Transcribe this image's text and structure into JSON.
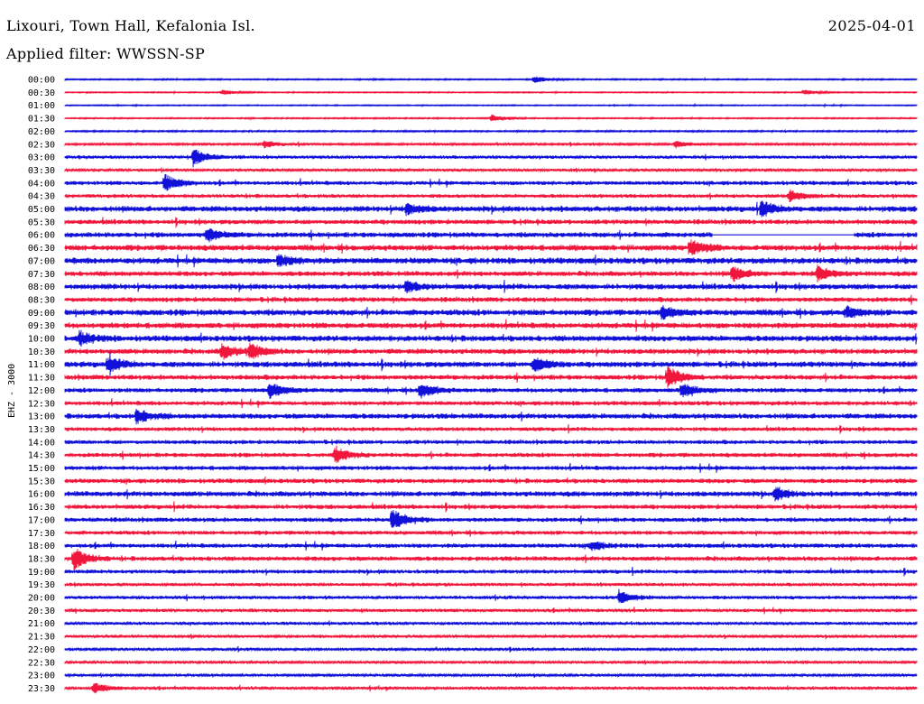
{
  "header": {
    "station": "Lixouri, Town Hall, Kefalonia Isl.",
    "date": "2025-04-01",
    "filter": "Applied filter: WWSSN-SP"
  },
  "chart_data": {
    "type": "line",
    "title": "Lixouri, Town Hall, Kefalonia Isl.",
    "subtitle": "Applied filter: WWSSN-SP",
    "ylabel": "EHZ - 3000",
    "trace_labels": [
      "00:00",
      "00:30",
      "01:00",
      "01:30",
      "02:00",
      "02:30",
      "03:00",
      "03:30",
      "04:00",
      "04:30",
      "05:00",
      "05:30",
      "06:00",
      "06:30",
      "07:00",
      "07:30",
      "08:00",
      "08:30",
      "09:00",
      "09:30",
      "10:00",
      "10:30",
      "11:00",
      "11:30",
      "12:00",
      "12:30",
      "13:00",
      "13:30",
      "14:00",
      "14:30",
      "15:00",
      "15:30",
      "16:00",
      "16:30",
      "17:00",
      "17:30",
      "18:00",
      "18:30",
      "19:00",
      "19:30",
      "20:00",
      "20:30",
      "21:00",
      "21:30",
      "22:00",
      "22:30",
      "23:00",
      "23:30"
    ],
    "trace_colors": [
      "#1010d8",
      "#f0163c"
    ],
    "noise_level": [
      0.6,
      0.5,
      0.5,
      0.6,
      0.7,
      1.0,
      1.4,
      1.3,
      1.9,
      1.7,
      2.6,
      2.2,
      2.4,
      2.7,
      2.8,
      2.3,
      2.5,
      2.2,
      2.8,
      2.6,
      2.7,
      2.4,
      2.6,
      2.3,
      2.1,
      2.0,
      2.4,
      1.8,
      1.9,
      2.0,
      2.0,
      2.1,
      2.4,
      2.1,
      2.0,
      1.9,
      2.0,
      2.1,
      1.8,
      1.5,
      1.6,
      1.5,
      1.4,
      1.3,
      1.2,
      1.1,
      1.2,
      1.3
    ],
    "events": [
      {
        "trace": "00:00",
        "minute": 16.5,
        "amplitude": 4
      },
      {
        "trace": "00:30",
        "minute": 5.5,
        "amplitude": 3
      },
      {
        "trace": "00:30",
        "minute": 26,
        "amplitude": 3
      },
      {
        "trace": "01:30",
        "minute": 15,
        "amplitude": 4
      },
      {
        "trace": "02:30",
        "minute": 7,
        "amplitude": 4
      },
      {
        "trace": "02:30",
        "minute": 21.5,
        "amplitude": 4
      },
      {
        "trace": "03:00",
        "minute": 4.5,
        "amplitude": 10
      },
      {
        "trace": "04:00",
        "minute": 3.5,
        "amplitude": 9
      },
      {
        "trace": "04:30",
        "minute": 25.5,
        "amplitude": 6
      },
      {
        "trace": "05:00",
        "minute": 12,
        "amplitude": 6
      },
      {
        "trace": "05:00",
        "minute": 24.5,
        "amplitude": 8
      },
      {
        "trace": "06:00",
        "minute": 5,
        "amplitude": 7
      },
      {
        "trace": "06:30",
        "minute": 22,
        "amplitude": 9
      },
      {
        "trace": "07:00",
        "minute": 7.5,
        "amplitude": 6
      },
      {
        "trace": "07:30",
        "minute": 23.5,
        "amplitude": 8
      },
      {
        "trace": "07:30",
        "minute": 26.5,
        "amplitude": 8
      },
      {
        "trace": "08:00",
        "minute": 12,
        "amplitude": 6
      },
      {
        "trace": "09:00",
        "minute": 21,
        "amplitude": 6
      },
      {
        "trace": "09:00",
        "minute": 27.5,
        "amplitude": 6
      },
      {
        "trace": "10:00",
        "minute": 0.5,
        "amplitude": 7
      },
      {
        "trace": "10:30",
        "minute": 5.5,
        "amplitude": 8
      },
      {
        "trace": "10:30",
        "minute": 6.5,
        "amplitude": 8
      },
      {
        "trace": "11:00",
        "minute": 1.5,
        "amplitude": 8
      },
      {
        "trace": "11:00",
        "minute": 16.5,
        "amplitude": 8
      },
      {
        "trace": "11:30",
        "minute": 21.2,
        "amplitude": 12
      },
      {
        "trace": "12:00",
        "minute": 7.2,
        "amplitude": 8
      },
      {
        "trace": "12:00",
        "minute": 12.5,
        "amplitude": 8
      },
      {
        "trace": "12:00",
        "minute": 21.7,
        "amplitude": 8
      },
      {
        "trace": "13:00",
        "minute": 2.5,
        "amplitude": 8
      },
      {
        "trace": "14:30",
        "minute": 9.5,
        "amplitude": 9
      },
      {
        "trace": "16:00",
        "minute": 25,
        "amplitude": 7
      },
      {
        "trace": "17:00",
        "minute": 11.5,
        "amplitude": 12
      },
      {
        "trace": "18:00",
        "minute": 18.5,
        "amplitude": 5
      },
      {
        "trace": "18:30",
        "minute": 0.3,
        "amplitude": 12
      },
      {
        "trace": "20:00",
        "minute": 19.5,
        "amplitude": 8
      },
      {
        "trace": "23:30",
        "minute": 1,
        "amplitude": 6
      }
    ],
    "gaps": [
      {
        "trace": "06:00",
        "from_minute": 22.8,
        "to_minute": 27.8
      }
    ]
  }
}
